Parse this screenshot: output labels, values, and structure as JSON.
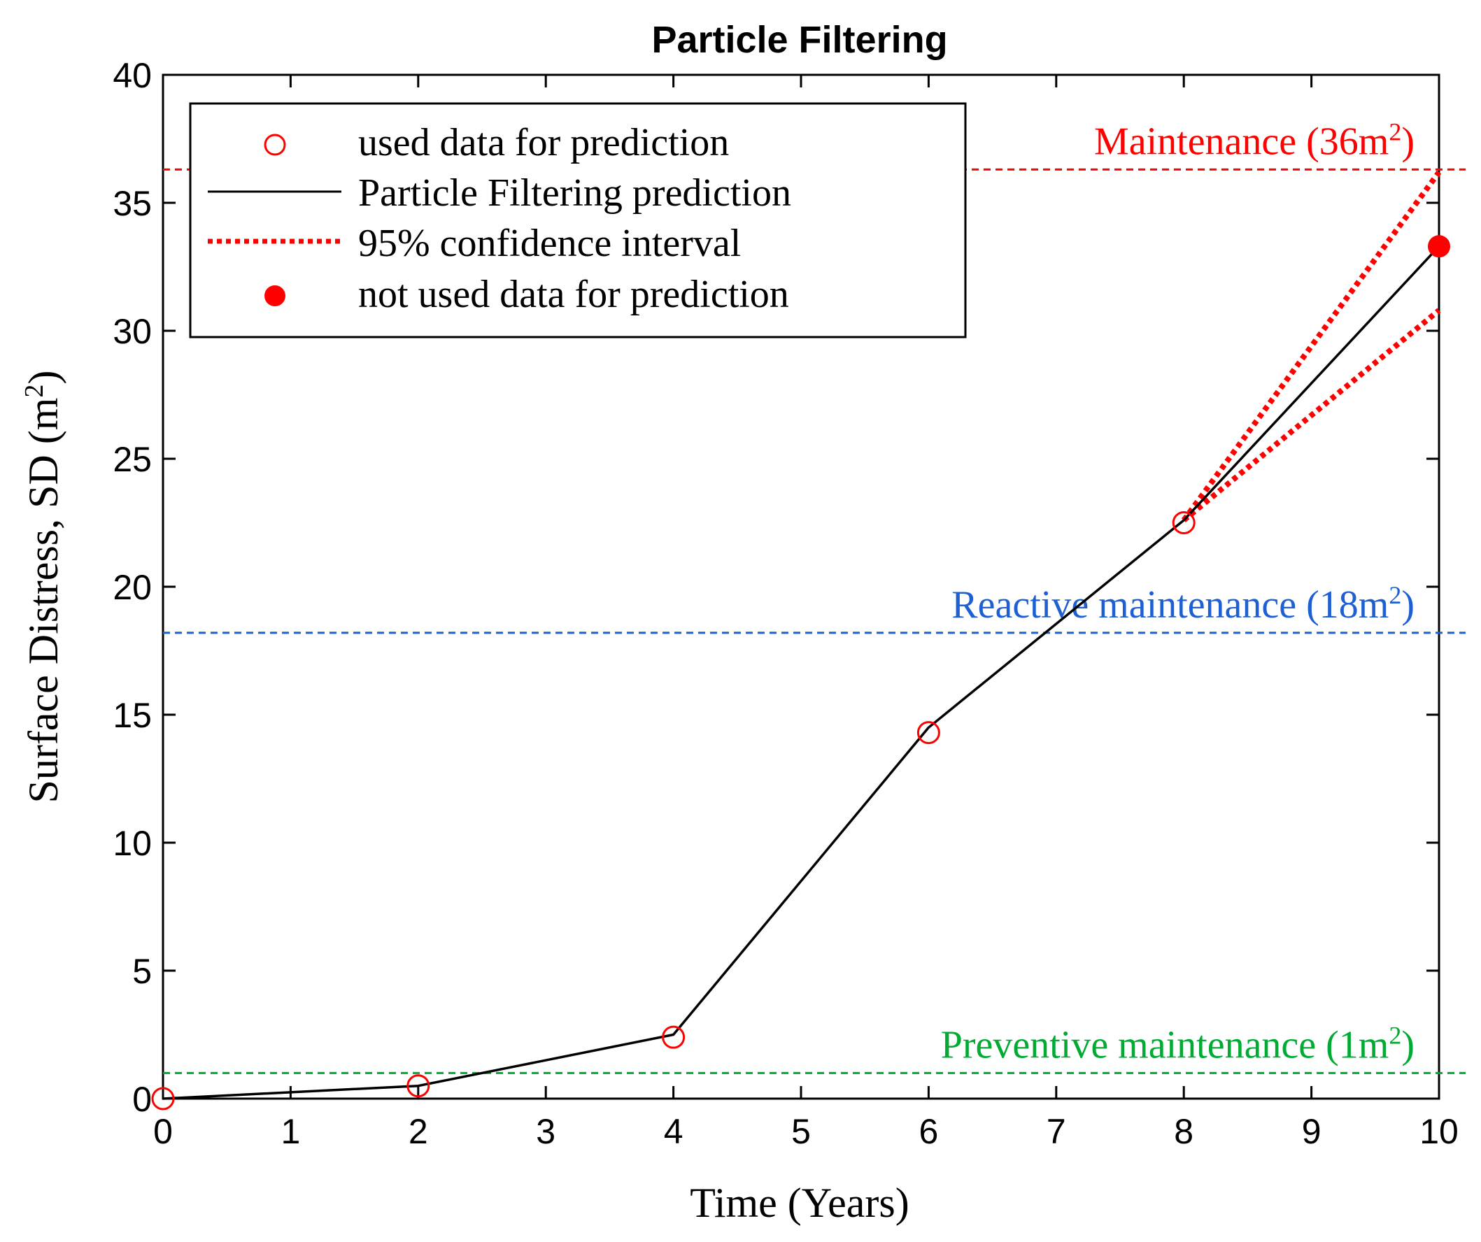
{
  "chart_data": {
    "type": "line",
    "title": "Particle Filtering",
    "xlabel": "Time (Years)",
    "ylabel": "Surface Distress, SD (m",
    "ylabel_sup": "2",
    "ylabel_close": ")",
    "xlim": [
      0,
      10
    ],
    "ylim": [
      0,
      40
    ],
    "x_ticks": [
      0,
      1,
      2,
      3,
      4,
      5,
      6,
      7,
      8,
      9,
      10
    ],
    "x_tick_labels": [
      "0",
      "1",
      "2",
      "3",
      "4",
      "5",
      "6",
      "7",
      "8",
      "9",
      "10"
    ],
    "y_ticks": [
      0,
      5,
      10,
      15,
      20,
      25,
      30,
      35,
      40
    ],
    "y_tick_labels": [
      "0",
      "5",
      "10",
      "15",
      "20",
      "25",
      "30",
      "35",
      "40"
    ],
    "series": [
      {
        "name": "used data for prediction",
        "style": "open-circle",
        "color": "#ff0000",
        "x": [
          0,
          2,
          4,
          6,
          8
        ],
        "y": [
          0,
          0.5,
          2.4,
          14.3,
          22.5
        ]
      },
      {
        "name": "Particle Filtering prediction",
        "style": "solid-line",
        "color": "#000000",
        "x": [
          0,
          2,
          4,
          6,
          8,
          10
        ],
        "y": [
          0,
          0.5,
          2.5,
          14.5,
          22.6,
          33.3
        ]
      },
      {
        "name": "95% confidence interval",
        "style": "dotted-line",
        "color": "#ff0000",
        "upper": {
          "x": [
            8,
            10
          ],
          "y": [
            22.6,
            36.2
          ]
        },
        "lower": {
          "x": [
            8,
            10
          ],
          "y": [
            22.6,
            30.8
          ]
        }
      },
      {
        "name": "not used data for prediction",
        "style": "filled-circle",
        "color": "#ff0000",
        "x": [
          10
        ],
        "y": [
          33.3
        ]
      }
    ],
    "thresholds": [
      {
        "label": "Maintenance (36m",
        "sup": "2",
        "close": ")",
        "value": 36.3,
        "color": "#ff0000"
      },
      {
        "label": "Reactive maintenance (18m",
        "sup": "2",
        "close": ")",
        "value": 18.2,
        "color": "#1f5fd4"
      },
      {
        "label": "Preventive maintenance (1m",
        "sup": "2",
        "close": ")",
        "value": 1.0,
        "color": "#00aa33"
      }
    ],
    "legend_position": "top-left",
    "grid": false
  }
}
